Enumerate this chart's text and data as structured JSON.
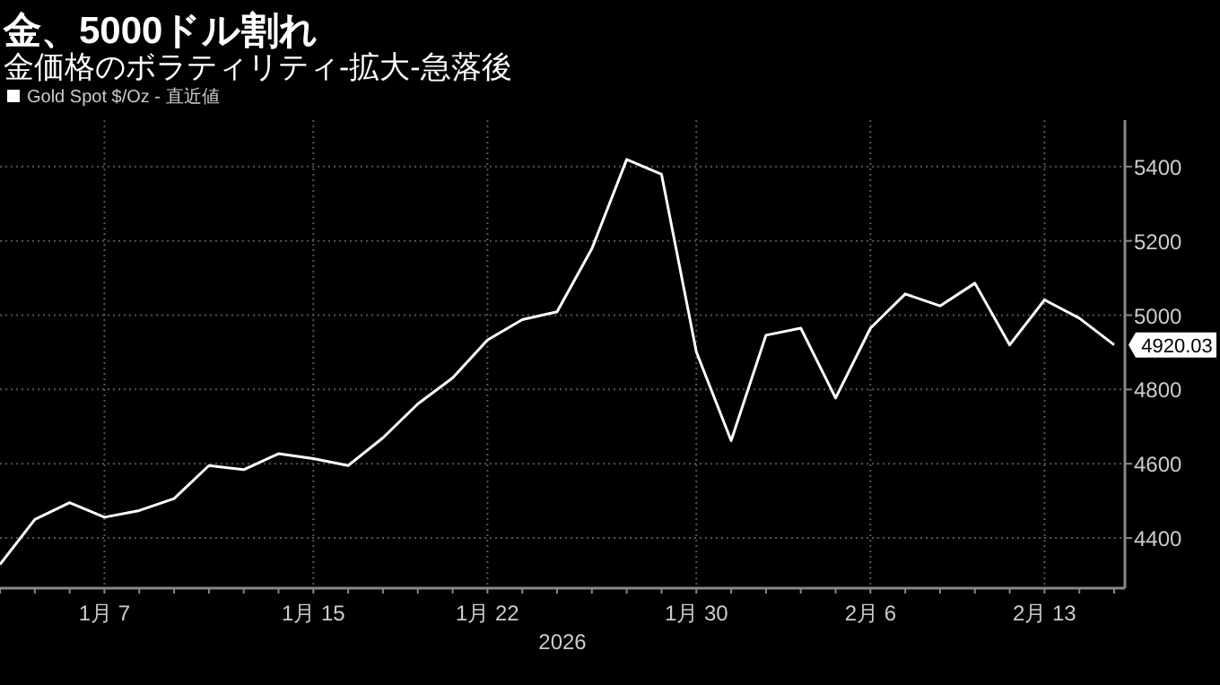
{
  "chart_data": {
    "type": "line",
    "title": "金、5000ドル割れ",
    "subtitle": "金価格のボラティリティ-拡大-急落後",
    "categories": [
      null,
      null,
      null,
      "1月 7",
      null,
      null,
      null,
      null,
      null,
      "1月 15",
      null,
      null,
      null,
      null,
      "1月 22",
      null,
      null,
      null,
      null,
      null,
      "1月 30",
      null,
      null,
      null,
      null,
      "2月 6",
      null,
      null,
      null,
      null,
      "2月 13",
      null,
      null
    ],
    "xlabel": "2026",
    "series": [
      {
        "name": "Gold Spot $/Oz - 直近値",
        "color": "#ffffff",
        "values": [
          4329,
          4450,
          4495,
          4456,
          4474,
          4506,
          4595,
          4584,
          4627,
          4614,
          4595,
          4670,
          4761,
          4831,
          4933,
          4988,
          5009,
          5179,
          5419,
          5379,
          4901,
          4662,
          4946,
          4965,
          4777,
          4965,
          5057,
          5025,
          5086,
          4920,
          5041,
          4992,
          4920.03
        ],
        "value_labels": [
          null,
          null,
          null,
          null,
          null,
          null,
          null,
          null,
          null,
          null,
          null,
          null,
          null,
          null,
          null,
          null,
          null,
          null,
          null,
          null,
          null,
          null,
          null,
          null,
          null,
          null,
          null,
          null,
          null,
          null,
          null,
          null,
          "4920.03"
        ]
      }
    ],
    "ylim": [
      4265,
      5525
    ],
    "yticks": [
      4400,
      4600,
      4800,
      5000,
      5200,
      5400
    ],
    "grid": true,
    "legend": "top left"
  }
}
